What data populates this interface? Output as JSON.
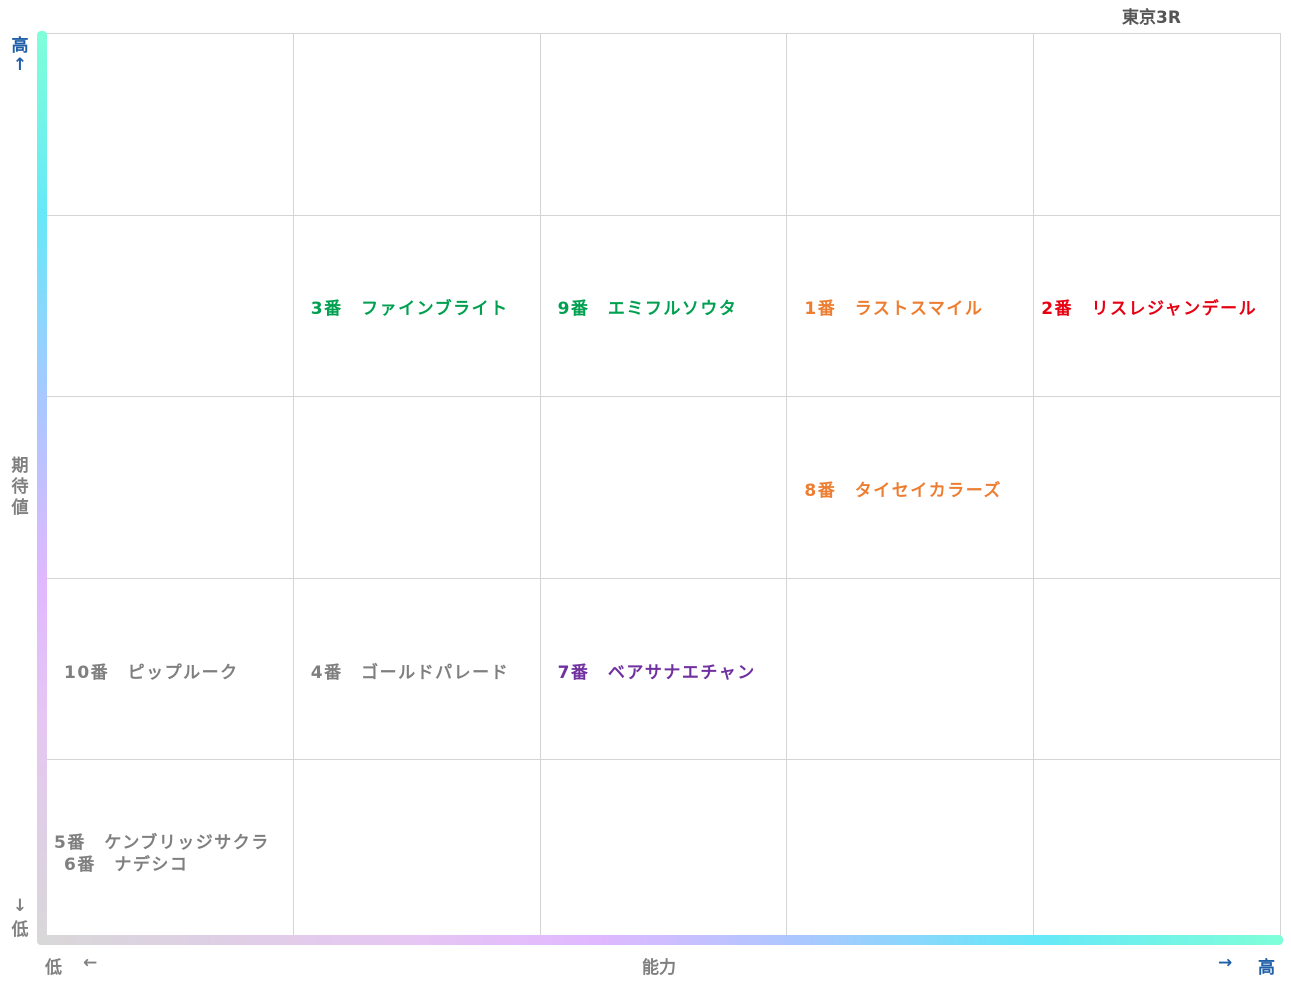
{
  "title": "東京3R",
  "axes": {
    "y_label": "期待値",
    "y_high": "高",
    "y_high_arrow": "↑",
    "y_low": "低",
    "y_low_arrow": "↓",
    "x_label": "能力",
    "x_low": "低",
    "x_low_arrow": "←",
    "x_high": "高",
    "x_high_arrow": "→",
    "arrow_color": "#1f5fa8",
    "label_color": "#808080"
  },
  "chart_data": {
    "type": "scatter",
    "title": "東京3R",
    "xlabel": "能力",
    "ylabel": "期待値",
    "x_levels": 5,
    "y_levels": 5,
    "grid": true,
    "points": [
      {
        "label": "3番　ファインブライト",
        "x": 2,
        "y": 4,
        "color": "#00a050"
      },
      {
        "label": "9番　エミフルソウタ",
        "x": 3,
        "y": 4,
        "color": "#00a050"
      },
      {
        "label": "1番　ラストスマイル",
        "x": 4,
        "y": 4,
        "color": "#ed7d31"
      },
      {
        "label": "2番　リスレジャンデール",
        "x": 5,
        "y": 4,
        "color": "#e60012"
      },
      {
        "label": "8番　タイセイカラーズ",
        "x": 4,
        "y": 3,
        "color": "#ed7d31"
      },
      {
        "label": "10番　ピップルーク",
        "x": 1,
        "y": 2,
        "color": "#7f7f7f"
      },
      {
        "label": "4番　ゴールドパレード",
        "x": 2,
        "y": 2,
        "color": "#7f7f7f"
      },
      {
        "label": "7番　ベアサナエチャン",
        "x": 3,
        "y": 2,
        "color": "#7030a0"
      },
      {
        "label": "5番　ケンブリッジサクラ",
        "x": 1,
        "y": 1,
        "color": "#7f7f7f"
      },
      {
        "label": "6番　ナデシコ",
        "x": 1,
        "y": 1,
        "color": "#7f7f7f"
      }
    ]
  }
}
